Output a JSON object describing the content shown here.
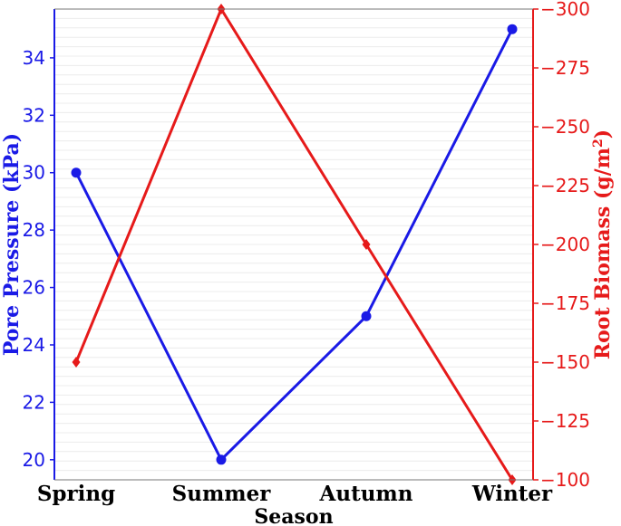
{
  "chart_data": {
    "type": "line",
    "title": "",
    "xlabel": "Season",
    "categories": [
      "Spring",
      "Summer",
      "Autumn",
      "Winter"
    ],
    "grid": true,
    "legend": "none",
    "y_left": {
      "label": "Pore Pressure (kPa)",
      "color": "#1a1ae6",
      "ylim": [
        19.3,
        35.7
      ],
      "ticks": [
        20,
        22,
        24,
        26,
        28,
        30,
        32,
        34
      ]
    },
    "y_right": {
      "label_main": "Root Biomass (g/m",
      "label_sup": "2",
      "label_end": ")",
      "color": "#e61a1a",
      "ylim": [
        -100,
        -300
      ],
      "ticks": [
        -100,
        -125,
        -150,
        -175,
        -200,
        -225,
        -250,
        -275,
        -300
      ],
      "tick_labels": [
        "−100",
        "−125",
        "−150",
        "−175",
        "−200",
        "−225",
        "−250",
        "−275",
        "−300"
      ]
    },
    "series": [
      {
        "axis": "left",
        "color": "#1a1ae6",
        "marker": "circle",
        "values": [
          30,
          20,
          25,
          35
        ]
      },
      {
        "axis": "right",
        "color": "#e61a1a",
        "marker": "diamond",
        "values": [
          -150,
          -300,
          -200,
          -100
        ]
      }
    ]
  }
}
